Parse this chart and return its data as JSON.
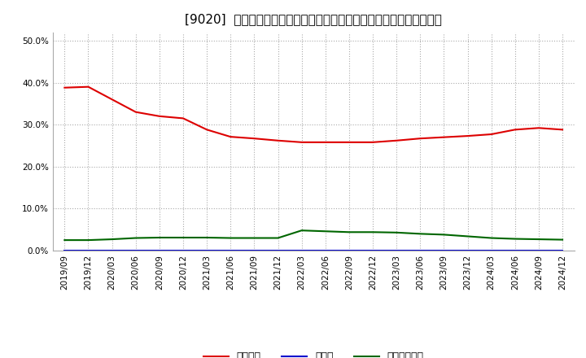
{
  "title": "[9020]  自己資本、のれん、繰延税金資産の総資産に対する比率の推移",
  "x_labels": [
    "2019/09",
    "2019/12",
    "2020/03",
    "2020/06",
    "2020/09",
    "2020/12",
    "2021/03",
    "2021/06",
    "2021/09",
    "2021/12",
    "2022/03",
    "2022/06",
    "2022/09",
    "2022/12",
    "2023/03",
    "2023/06",
    "2023/09",
    "2023/12",
    "2024/03",
    "2024/06",
    "2024/09",
    "2024/12"
  ],
  "jiko_shihon": [
    0.388,
    0.39,
    0.36,
    0.33,
    0.32,
    0.315,
    0.288,
    0.271,
    0.267,
    0.262,
    0.258,
    0.258,
    0.258,
    0.258,
    0.262,
    0.267,
    0.27,
    0.273,
    0.277,
    0.288,
    0.292,
    0.288
  ],
  "noren": [
    0.0,
    0.0,
    0.0,
    0.0,
    0.0,
    0.0,
    0.0,
    0.0,
    0.0,
    0.0,
    0.0,
    0.0,
    0.0,
    0.0,
    0.0,
    0.0,
    0.0,
    0.0,
    0.0,
    0.0,
    0.0,
    0.0
  ],
  "kurinobe": [
    0.025,
    0.025,
    0.027,
    0.03,
    0.031,
    0.031,
    0.031,
    0.03,
    0.03,
    0.03,
    0.048,
    0.046,
    0.044,
    0.044,
    0.043,
    0.04,
    0.038,
    0.034,
    0.03,
    0.028,
    0.027,
    0.026
  ],
  "line_colors": {
    "jiko_shihon": "#dd0000",
    "noren": "#0000cc",
    "kurinobe": "#006600"
  },
  "legend_labels": {
    "jiko_shihon": "自己資本",
    "noren": "のれん",
    "kurinobe": "繰延税金資産"
  },
  "ylim": [
    0.0,
    0.52
  ],
  "yticks": [
    0.0,
    0.1,
    0.2,
    0.3,
    0.4,
    0.5
  ],
  "background_color": "#ffffff",
  "plot_bg_color": "#ffffff",
  "grid_color": "#aaaaaa",
  "title_fontsize": 11,
  "axis_fontsize": 7.5,
  "legend_fontsize": 9
}
